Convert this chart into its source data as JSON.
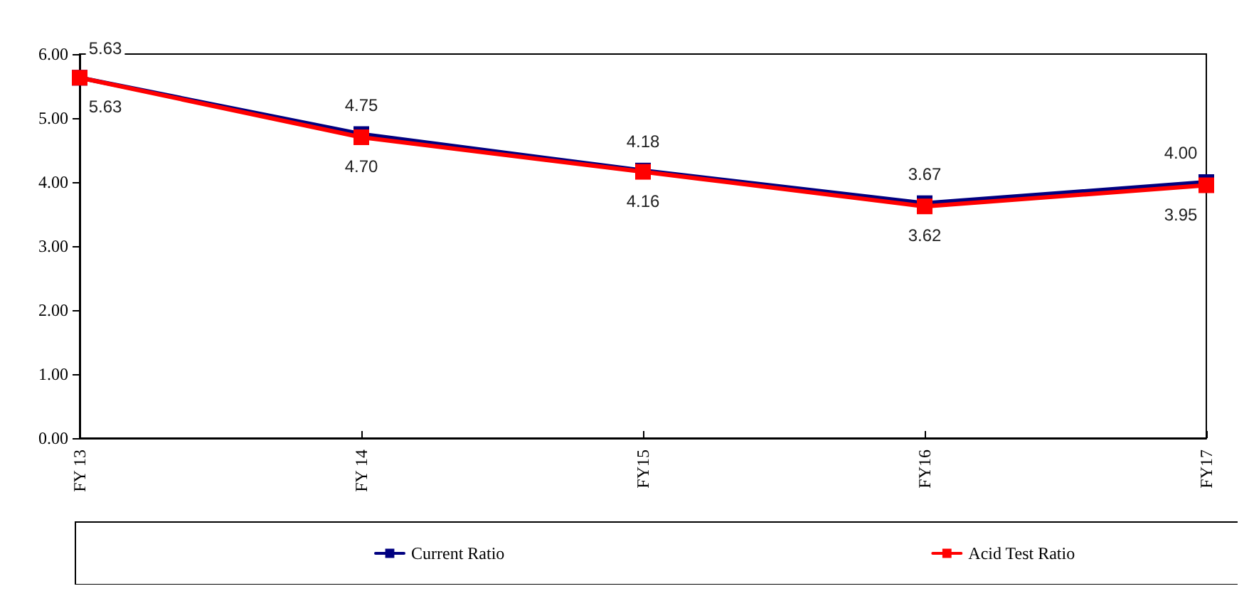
{
  "chart_data": {
    "type": "line",
    "categories": [
      "FY 13",
      "FY 14",
      "FY15",
      "FY16",
      "FY17"
    ],
    "series": [
      {
        "name": "Current Ratio",
        "color": "#000080",
        "values": [
          5.63,
          4.75,
          4.18,
          3.67,
          4.0
        ],
        "value_labels": [
          "5.63",
          "4.75",
          "4.18",
          "3.67",
          "4.00"
        ]
      },
      {
        "name": "Acid Test Ratio",
        "color": "#ff0000",
        "values": [
          5.63,
          4.7,
          4.16,
          3.62,
          3.95
        ],
        "value_labels": [
          "5.63",
          "4.70",
          "4.16",
          "3.62",
          "3.95"
        ]
      }
    ],
    "ylim": [
      0,
      6
    ],
    "yticks": [
      {
        "value": 0,
        "label": "0.00"
      },
      {
        "value": 1,
        "label": "1.00"
      },
      {
        "value": 2,
        "label": "2.00"
      },
      {
        "value": 3,
        "label": "3.00"
      },
      {
        "value": 4,
        "label": "4.00"
      },
      {
        "value": 5,
        "label": "5.00"
      },
      {
        "value": 6,
        "label": "6.00"
      }
    ],
    "grid": false,
    "legend": "bottom",
    "marker": "square",
    "line_style": "solid"
  }
}
